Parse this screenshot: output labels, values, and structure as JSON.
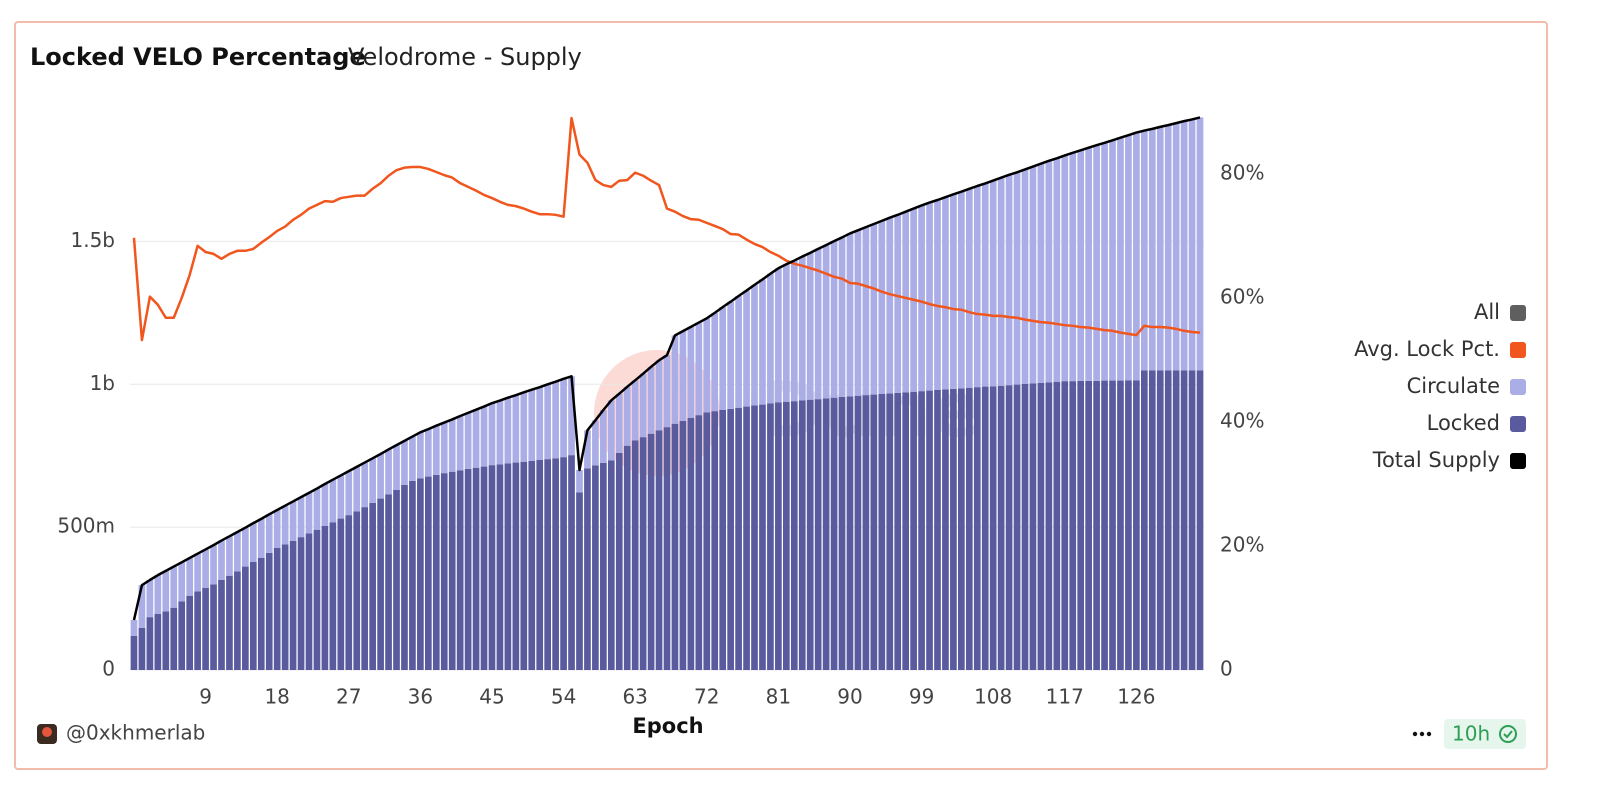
{
  "chart_data": {
    "type": "combo",
    "title": "Locked VELO Percentage",
    "subtitle": "Velodrome - Supply",
    "x_label": "Epoch",
    "watermark": "Dune",
    "author": "@0xkhmerlab",
    "refresh": "10h",
    "legend_toggle": {
      "label": "All",
      "color": "#5f5f5f"
    },
    "x": [
      0,
      1,
      2,
      3,
      4,
      5,
      6,
      7,
      8,
      9,
      10,
      11,
      12,
      13,
      14,
      15,
      16,
      17,
      18,
      19,
      20,
      21,
      22,
      23,
      24,
      25,
      26,
      27,
      28,
      29,
      30,
      31,
      32,
      33,
      34,
      35,
      36,
      37,
      38,
      39,
      40,
      41,
      42,
      43,
      44,
      45,
      46,
      47,
      48,
      49,
      50,
      51,
      52,
      53,
      54,
      55,
      56,
      57,
      58,
      59,
      60,
      61,
      62,
      63,
      64,
      65,
      66,
      67,
      68,
      69,
      70,
      71,
      72,
      73,
      74,
      75,
      76,
      77,
      78,
      79,
      80,
      81,
      82,
      83,
      84,
      85,
      86,
      87,
      88,
      89,
      90,
      91,
      92,
      93,
      94,
      95,
      96,
      97,
      98,
      99,
      100,
      101,
      102,
      103,
      104,
      105,
      106,
      107,
      108,
      109,
      110,
      111,
      112,
      113,
      114,
      115,
      116,
      117,
      118,
      119,
      120,
      121,
      122,
      123,
      124,
      125,
      126,
      127,
      128,
      129,
      130,
      131,
      132,
      133,
      134
    ],
    "xlim": [
      -0.5,
      134.5
    ],
    "xticks": [
      9,
      18,
      27,
      36,
      45,
      54,
      63,
      72,
      81,
      90,
      99,
      108,
      117,
      126
    ],
    "ylim": [
      0,
      1960000000.0
    ],
    "yticks": [
      0,
      {
        "value": 500000000.0,
        "label": "500m"
      },
      {
        "value": 1000000000.0,
        "label": "1b"
      },
      {
        "value": 1500000000.0,
        "label": "1.5b"
      }
    ],
    "y2lim": [
      0,
      90.3
    ],
    "y2ticks": [
      0,
      {
        "value": 20,
        "label": "20%"
      },
      {
        "value": 40,
        "label": "40%"
      },
      {
        "value": 60,
        "label": "60%"
      },
      {
        "value": 80,
        "label": "80%"
      }
    ],
    "grid": true,
    "legend": "right",
    "series": [
      {
        "name": "Avg. Lock Pct.",
        "type": "line",
        "axis": "y2",
        "color": "#f0561d",
        "values": [
          69.7,
          53.2,
          60.2,
          58.9,
          56.8,
          56.8,
          60,
          63.7,
          68.4,
          67.4,
          67.1,
          66.3,
          67.1,
          67.6,
          67.6,
          67.9,
          68.9,
          69.8,
          70.8,
          71.5,
          72.6,
          73.4,
          74.4,
          75,
          75.6,
          75.5,
          76.1,
          76.3,
          76.5,
          76.5,
          77.6,
          78.5,
          79.7,
          80.6,
          81,
          81.1,
          81.1,
          80.8,
          80.3,
          79.8,
          79.4,
          78.5,
          77.9,
          77.3,
          76.6,
          76.1,
          75.5,
          75,
          74.8,
          74.4,
          73.9,
          73.5,
          73.5,
          73.4,
          73.1,
          89,
          83.1,
          81.8,
          79,
          78.2,
          77.9,
          78.9,
          79,
          80.2,
          79.7,
          78.9,
          78.2,
          74.4,
          73.9,
          73.2,
          72.7,
          72.6,
          72.1,
          71.6,
          71.1,
          70.3,
          70.2,
          69.4,
          68.7,
          68.2,
          67.4,
          66.8,
          66,
          65.5,
          65.2,
          64.8,
          64.4,
          63.9,
          63.4,
          63.1,
          62.4,
          62.3,
          61.9,
          61.5,
          61,
          60.6,
          60.3,
          60,
          59.7,
          59.4,
          59,
          58.7,
          58.5,
          58.2,
          58.1,
          57.7,
          57.4,
          57.3,
          57.1,
          57.1,
          56.9,
          56.8,
          56.5,
          56.3,
          56.1,
          56,
          55.8,
          55.6,
          55.5,
          55.3,
          55.2,
          55,
          54.8,
          54.7,
          54.4,
          54.2,
          54,
          55.5,
          55.3,
          55.3,
          55.2,
          55,
          54.7,
          54.5,
          54.4
        ]
      },
      {
        "name": "Circulate",
        "type": "bar",
        "color": "#abade6",
        "values": [
          56000000.0,
          150000000.0,
          130000000.0,
          136000000.0,
          142000000.0,
          144000000.0,
          137000000.0,
          132000000.0,
          132000000.0,
          135000000.0,
          137000000.0,
          138000000.0,
          138000000.0,
          138000000.0,
          136000000.0,
          136000000.0,
          136000000.0,
          135000000.0,
          133000000.0,
          135000000.0,
          138000000.0,
          140000000.0,
          142000000.0,
          144000000.0,
          147000000.0,
          149000000.0,
          151000000.0,
          154000000.0,
          156000000.0,
          156000000.0,
          156000000.0,
          156000000.0,
          157000000.0,
          157000000.0,
          154000000.0,
          155000000.0,
          161000000.0,
          166000000.0,
          172000000.0,
          177000000.0,
          183000000.0,
          190000000.0,
          196000000.0,
          203000000.0,
          210000000.0,
          217000000.0,
          223000000.0,
          230000000.0,
          236000000.0,
          243000000.0,
          249000000.0,
          255000000.0,
          262000000.0,
          268000000.0,
          274000000.0,
          276000000.0,
          78000000.0,
          133000000.0,
          158000000.0,
          185000000.0,
          210000000.0,
          207000000.0,
          206000000.0,
          210000000.0,
          222000000.0,
          234000000.0,
          245000000.0,
          252000000.0,
          309000000.0,
          314000000.0,
          319000000.0,
          324000000.0,
          329000000.0,
          344000000.0,
          360000000.0,
          375000000.0,
          391000000.0,
          406000000.0,
          422000000.0,
          438000000.0,
          454000000.0,
          469000000.0,
          481000000.0,
          492000000.0,
          503000000.0,
          514000000.0,
          526000000.0,
          536000000.0,
          548000000.0,
          558000000.0,
          570000000.0,
          579000000.0,
          588000000.0,
          597000000.0,
          606000000.0,
          615000000.0,
          623000000.0,
          632000000.0,
          641000000.0,
          650000000.0,
          658000000.0,
          665000000.0,
          673000000.0,
          681000000.0,
          688000000.0,
          696000000.0,
          704000000.0,
          711000000.0,
          720000000.0,
          728000000.0,
          736000000.0,
          743000000.0,
          751000000.0,
          759000000.0,
          767000000.0,
          775000000.0,
          782000000.0,
          790000000.0,
          799000000.0,
          807000000.0,
          816000000.0,
          825000000.0,
          832000000.0,
          841000000.0,
          850000000.0,
          858000000.0,
          867000000.0,
          839000000.0,
          845000000.0,
          852000000.0,
          858000000.0,
          865000000.0,
          872000000.0,
          878000000.0,
          885000000.0
        ]
      },
      {
        "name": "Locked",
        "type": "bar",
        "color": "#5a5b9f",
        "values": [
          119000000.0,
          147000000.0,
          185000000.0,
          196000000.0,
          205000000.0,
          218000000.0,
          240000000.0,
          260000000.0,
          275000000.0,
          287000000.0,
          300000000.0,
          315000000.0,
          330000000.0,
          345000000.0,
          362000000.0,
          378000000.0,
          393000000.0,
          410000000.0,
          427000000.0,
          440000000.0,
          452000000.0,
          465000000.0,
          478000000.0,
          491000000.0,
          504000000.0,
          517000000.0,
          530000000.0,
          542000000.0,
          555000000.0,
          570000000.0,
          585000000.0,
          600000000.0,
          615000000.0,
          630000000.0,
          648000000.0,
          662000000.0,
          671000000.0,
          677000000.0,
          683000000.0,
          689000000.0,
          694000000.0,
          699000000.0,
          704000000.0,
          708000000.0,
          712000000.0,
          717000000.0,
          720000000.0,
          723000000.0,
          726000000.0,
          729000000.0,
          732000000.0,
          735000000.0,
          738000000.0,
          741000000.0,
          745000000.0,
          752000000.0,
          622000000.0,
          706000000.0,
          716000000.0,
          725000000.0,
          734000000.0,
          760000000.0,
          785000000.0,
          804000000.0,
          815000000.0,
          827000000.0,
          839000000.0,
          850000000.0,
          862000000.0,
          872000000.0,
          882000000.0,
          892000000.0,
          902000000.0,
          906000000.0,
          910000000.0,
          914000000.0,
          918000000.0,
          922000000.0,
          926000000.0,
          929000000.0,
          933000000.0,
          937000000.0,
          939000000.0,
          941000000.0,
          944000000.0,
          946000000.0,
          948000000.0,
          951000000.0,
          953000000.0,
          956000000.0,
          958000000.0,
          960000000.0,
          962000000.0,
          964000000.0,
          966000000.0,
          968000000.0,
          970000000.0,
          972000000.0,
          974000000.0,
          976000000.0,
          978000000.0,
          980000000.0,
          982000000.0,
          984000000.0,
          986000000.0,
          988000000.0,
          990000000.0,
          992000000.0,
          993000000.0,
          995000000.0,
          997000000.0,
          999000000.0,
          1001000000.0,
          1003000000.0,
          1005000000.0,
          1007000000.0,
          1009000000.0,
          1011000000.0,
          1011000000.0,
          1012000000.0,
          1012000000.0,
          1012000000.0,
          1013000000.0,
          1013000000.0,
          1013000000.0,
          1014000000.0,
          1014000000.0,
          1049000000.0,
          1049000000.0,
          1049000000.0,
          1049000000.0,
          1049000000.0,
          1049000000.0,
          1049000000.0,
          1049000000.0
        ]
      },
      {
        "name": "Total Supply",
        "type": "line",
        "color": "#000000",
        "values": [
          175000000.0,
          297000000.0,
          315000000.0,
          332000000.0,
          347000000.0,
          362000000.0,
          377000000.0,
          392000000.0,
          407000000.0,
          422000000.0,
          437000000.0,
          453000000.0,
          468000000.0,
          483000000.0,
          498000000.0,
          514000000.0,
          529000000.0,
          545000000.0,
          560000000.0,
          575000000.0,
          590000000.0,
          605000000.0,
          620000000.0,
          635000000.0,
          651000000.0,
          666000000.0,
          681000000.0,
          696000000.0,
          711000000.0,
          726000000.0,
          741000000.0,
          756000000.0,
          772000000.0,
          787000000.0,
          802000000.0,
          817000000.0,
          832000000.0,
          843000000.0,
          855000000.0,
          866000000.0,
          877000000.0,
          889000000.0,
          900000000.0,
          911000000.0,
          922000000.0,
          934000000.0,
          943000000.0,
          953000000.0,
          962000000.0,
          972000000.0,
          981000000.0,
          990000000.0,
          1000000000.0,
          1009000000.0,
          1019000000.0,
          1028000000.0,
          700000000.0,
          839000000.0,
          874000000.0,
          910000000.0,
          944000000.0,
          967000000.0,
          991000000.0,
          1014000000.0,
          1037000000.0,
          1061000000.0,
          1084000000.0,
          1102000000.0,
          1171000000.0,
          1186000000.0,
          1201000000.0,
          1216000000.0,
          1231000000.0,
          1250000000.0,
          1270000000.0,
          1289000000.0,
          1309000000.0,
          1328000000.0,
          1348000000.0,
          1367000000.0,
          1387000000.0,
          1406000000.0,
          1420000000.0,
          1433000000.0,
          1447000000.0,
          1460000000.0,
          1474000000.0,
          1487000000.0,
          1501000000.0,
          1514000000.0,
          1528000000.0,
          1539000000.0,
          1550000000.0,
          1561000000.0,
          1572000000.0,
          1583000000.0,
          1593000000.0,
          1604000000.0,
          1615000000.0,
          1626000000.0,
          1636000000.0,
          1645000000.0,
          1655000000.0,
          1665000000.0,
          1674000000.0,
          1684000000.0,
          1694000000.0,
          1703000000.0,
          1713000000.0,
          1723000000.0,
          1733000000.0,
          1742000000.0,
          1752000000.0,
          1762000000.0,
          1772000000.0,
          1782000000.0,
          1791000000.0,
          1801000000.0,
          1810000000.0,
          1819000000.0,
          1828000000.0,
          1837000000.0,
          1845000000.0,
          1854000000.0,
          1863000000.0,
          1872000000.0,
          1881000000.0,
          1888000000.0,
          1894000000.0,
          1901000000.0,
          1907000000.0,
          1914000000.0,
          1921000000.0,
          1927000000.0,
          1934000000.0
        ]
      }
    ]
  }
}
